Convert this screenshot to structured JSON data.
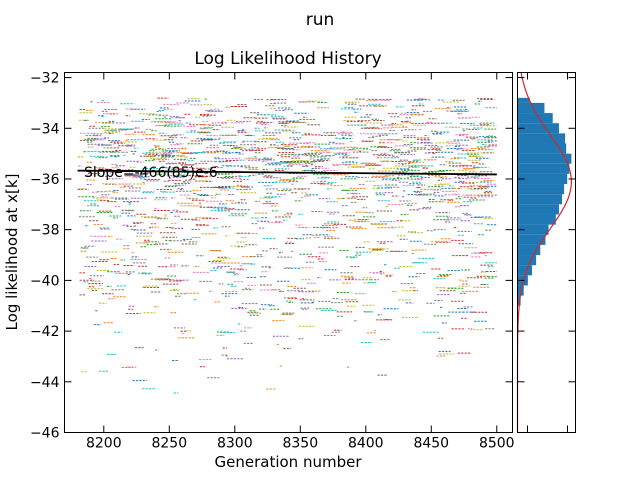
{
  "figure": {
    "suptitle": "run"
  },
  "chart_data": [
    {
      "type": "line",
      "title": "Log Likelihood History",
      "xlabel": "Generation number",
      "ylabel": "Log likelihood at x[k]",
      "xlim": [
        8170,
        8512
      ],
      "ylim": [
        -46,
        -31.8
      ],
      "xticks": [
        8200,
        8250,
        8300,
        8350,
        8400,
        8450,
        8500
      ],
      "yticks": [
        -46,
        -44,
        -42,
        -40,
        -38,
        -36,
        -34,
        -32
      ],
      "xtick_labels": [
        "8200",
        "8250",
        "8300",
        "8350",
        "8400",
        "8450",
        "8500"
      ],
      "ytick_labels": [
        "−46",
        "−44",
        "−42",
        "−40",
        "−38",
        "−36",
        "−34",
        "−32"
      ],
      "series_description": "Many chains drawn as short colored dashed segments between generation 8180 and 8500; most values between -33 and -40, sparse down to about -45.",
      "generation_range": [
        8180,
        8500
      ],
      "value_core_range": [
        -40,
        -32.8
      ],
      "value_min": -45.4,
      "trend": {
        "label": "Slope=-466(85)e-6",
        "x": [
          8180,
          8500
        ],
        "y": [
          -35.67,
          -35.82
        ],
        "color": "#000000"
      },
      "grid": false
    },
    {
      "type": "histogram",
      "orientation": "horizontal",
      "ylim": [
        -46,
        -31.8
      ],
      "bar_color": "#1f77b4",
      "fit_curve_color": "#d62728",
      "bins": [
        {
          "y0": -41.0,
          "y1": -40.6,
          "count": 3
        },
        {
          "y0": -40.6,
          "y1": -40.2,
          "count": 6
        },
        {
          "y0": -40.2,
          "y1": -39.8,
          "count": 10
        },
        {
          "y0": -39.8,
          "y1": -39.4,
          "count": 14
        },
        {
          "y0": -39.4,
          "y1": -39.0,
          "count": 18
        },
        {
          "y0": -39.0,
          "y1": -38.6,
          "count": 22
        },
        {
          "y0": -38.6,
          "y1": -38.2,
          "count": 27
        },
        {
          "y0": -38.2,
          "y1": -37.8,
          "count": 30
        },
        {
          "y0": -37.8,
          "y1": -37.4,
          "count": 37
        },
        {
          "y0": -37.4,
          "y1": -37.0,
          "count": 40
        },
        {
          "y0": -37.0,
          "y1": -36.6,
          "count": 43
        },
        {
          "y0": -36.6,
          "y1": -36.2,
          "count": 45
        },
        {
          "y0": -36.2,
          "y1": -35.8,
          "count": 48
        },
        {
          "y0": -35.8,
          "y1": -35.4,
          "count": 50
        },
        {
          "y0": -35.4,
          "y1": -35.0,
          "count": 52
        },
        {
          "y0": -35.0,
          "y1": -34.6,
          "count": 47
        },
        {
          "y0": -34.6,
          "y1": -34.2,
          "count": 46
        },
        {
          "y0": -34.2,
          "y1": -33.8,
          "count": 40
        },
        {
          "y0": -33.8,
          "y1": -33.4,
          "count": 34
        },
        {
          "y0": -33.4,
          "y1": -33.0,
          "count": 26
        },
        {
          "y0": -33.0,
          "y1": -32.8,
          "count": 12
        }
      ],
      "max_count": 56
    }
  ]
}
